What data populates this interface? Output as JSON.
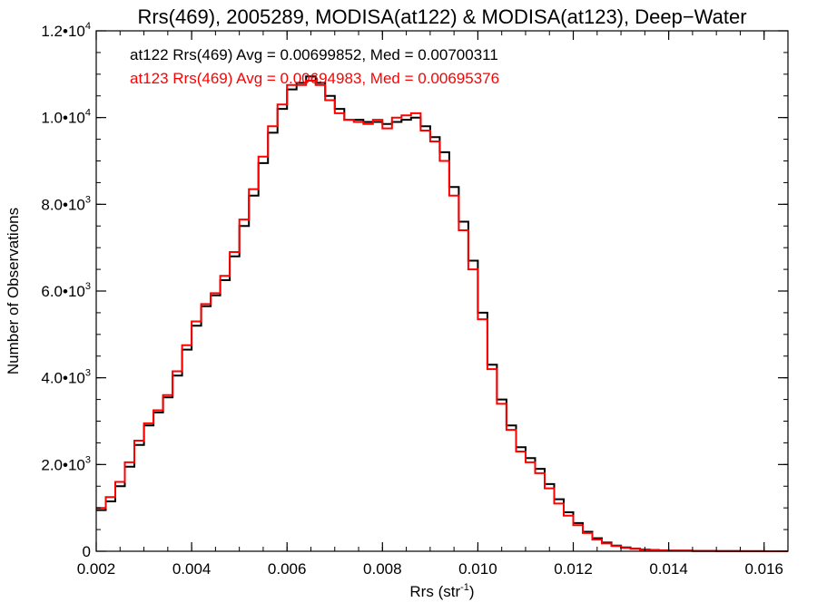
{
  "chart_data": {
    "type": "line",
    "title": "Rrs(469), 2005289, MODISA(at122) & MODISA(at123), Deep−Water",
    "xlabel": {
      "base": "Rrs (str",
      "sup": "-1",
      "close": ")"
    },
    "ylabel": "Number of Observations",
    "xlim": [
      0.002,
      0.0165
    ],
    "ylim": [
      0,
      12000
    ],
    "x_ticks": [
      {
        "value": 0.002,
        "label": "0.002"
      },
      {
        "value": 0.004,
        "label": "0.004"
      },
      {
        "value": 0.006,
        "label": "0.006"
      },
      {
        "value": 0.008,
        "label": "0.008"
      },
      {
        "value": 0.01,
        "label": "0.010"
      },
      {
        "value": 0.012,
        "label": "0.012"
      },
      {
        "value": 0.014,
        "label": "0.014"
      },
      {
        "value": 0.016,
        "label": "0.016"
      }
    ],
    "y_ticks": [
      {
        "value": 0,
        "mant": "0",
        "exp": ""
      },
      {
        "value": 2000,
        "mant": "2.0•10",
        "exp": "3"
      },
      {
        "value": 4000,
        "mant": "4.0•10",
        "exp": "3"
      },
      {
        "value": 6000,
        "mant": "6.0•10",
        "exp": "3"
      },
      {
        "value": 8000,
        "mant": "8.0•10",
        "exp": "3"
      },
      {
        "value": 10000,
        "mant": "1.0•10",
        "exp": "4"
      },
      {
        "value": 12000,
        "mant": "1.2•10",
        "exp": "4"
      }
    ],
    "legend": {
      "placement": "top-left",
      "entries": [
        {
          "text": "at122 Rrs(469) Avg = 0.00699852, Med = 0.00700311",
          "color": "#000000"
        },
        {
          "text": "at123 Rrs(469) Avg = 0.00694983, Med = 0.00695376",
          "color": "#ff0000"
        }
      ]
    },
    "series": [
      {
        "color": "#000000",
        "points": [
          [
            0.002,
            950
          ],
          [
            0.0022,
            1150
          ],
          [
            0.0024,
            1500
          ],
          [
            0.0026,
            1950
          ],
          [
            0.0028,
            2450
          ],
          [
            0.003,
            2900
          ],
          [
            0.0032,
            3200
          ],
          [
            0.0034,
            3550
          ],
          [
            0.0036,
            4050
          ],
          [
            0.0038,
            4650
          ],
          [
            0.004,
            5200
          ],
          [
            0.0042,
            5650
          ],
          [
            0.0044,
            5900
          ],
          [
            0.0046,
            6250
          ],
          [
            0.0048,
            6800
          ],
          [
            0.005,
            7500
          ],
          [
            0.0052,
            8200
          ],
          [
            0.0054,
            8950
          ],
          [
            0.0056,
            9650
          ],
          [
            0.0058,
            10200
          ],
          [
            0.006,
            10650
          ],
          [
            0.0062,
            10800
          ],
          [
            0.0064,
            10950
          ],
          [
            0.0066,
            10800
          ],
          [
            0.0068,
            10500
          ],
          [
            0.007,
            10200
          ],
          [
            0.0072,
            9950
          ],
          [
            0.0074,
            9950
          ],
          [
            0.0076,
            9900
          ],
          [
            0.0078,
            9900
          ],
          [
            0.008,
            9850
          ],
          [
            0.0082,
            9900
          ],
          [
            0.0084,
            9950
          ],
          [
            0.0086,
            10000
          ],
          [
            0.0088,
            9800
          ],
          [
            0.009,
            9550
          ],
          [
            0.0092,
            9200
          ],
          [
            0.0094,
            8400
          ],
          [
            0.0096,
            7600
          ],
          [
            0.0098,
            6700
          ],
          [
            0.01,
            5500
          ],
          [
            0.0102,
            4300
          ],
          [
            0.0104,
            3500
          ],
          [
            0.0106,
            2900
          ],
          [
            0.0108,
            2400
          ],
          [
            0.011,
            2150
          ],
          [
            0.0112,
            1900
          ],
          [
            0.0114,
            1550
          ],
          [
            0.0116,
            1200
          ],
          [
            0.0118,
            900
          ],
          [
            0.012,
            650
          ],
          [
            0.0122,
            450
          ],
          [
            0.0124,
            300
          ],
          [
            0.0126,
            200
          ],
          [
            0.0128,
            130
          ],
          [
            0.013,
            90
          ],
          [
            0.0132,
            60
          ],
          [
            0.0134,
            40
          ],
          [
            0.0136,
            30
          ],
          [
            0.0138,
            20
          ],
          [
            0.014,
            14
          ],
          [
            0.0145,
            8
          ],
          [
            0.015,
            4
          ],
          [
            0.0155,
            2
          ],
          [
            0.016,
            1
          ],
          [
            0.0165,
            0
          ]
        ]
      },
      {
        "color": "#ff0000",
        "points": [
          [
            0.002,
            1000
          ],
          [
            0.0022,
            1250
          ],
          [
            0.0024,
            1600
          ],
          [
            0.0026,
            2050
          ],
          [
            0.0028,
            2550
          ],
          [
            0.003,
            2950
          ],
          [
            0.0032,
            3250
          ],
          [
            0.0034,
            3600
          ],
          [
            0.0036,
            4150
          ],
          [
            0.0038,
            4750
          ],
          [
            0.004,
            5300
          ],
          [
            0.0042,
            5700
          ],
          [
            0.0044,
            5950
          ],
          [
            0.0046,
            6350
          ],
          [
            0.0048,
            6900
          ],
          [
            0.005,
            7650
          ],
          [
            0.0052,
            8350
          ],
          [
            0.0054,
            9100
          ],
          [
            0.0056,
            9800
          ],
          [
            0.0058,
            10300
          ],
          [
            0.006,
            10750
          ],
          [
            0.0062,
            10750
          ],
          [
            0.0064,
            10850
          ],
          [
            0.0066,
            10750
          ],
          [
            0.0068,
            10400
          ],
          [
            0.007,
            10100
          ],
          [
            0.0072,
            9950
          ],
          [
            0.0074,
            9900
          ],
          [
            0.0076,
            9850
          ],
          [
            0.0078,
            9950
          ],
          [
            0.008,
            9750
          ],
          [
            0.0082,
            10000
          ],
          [
            0.0084,
            10050
          ],
          [
            0.0086,
            10100
          ],
          [
            0.0088,
            9700
          ],
          [
            0.009,
            9450
          ],
          [
            0.0092,
            9000
          ],
          [
            0.0094,
            8200
          ],
          [
            0.0096,
            7400
          ],
          [
            0.0098,
            6500
          ],
          [
            0.01,
            5350
          ],
          [
            0.0102,
            4200
          ],
          [
            0.0104,
            3400
          ],
          [
            0.0106,
            2800
          ],
          [
            0.0108,
            2300
          ],
          [
            0.011,
            2050
          ],
          [
            0.0112,
            1800
          ],
          [
            0.0114,
            1450
          ],
          [
            0.0116,
            1100
          ],
          [
            0.0118,
            820
          ],
          [
            0.012,
            600
          ],
          [
            0.0122,
            420
          ],
          [
            0.0124,
            270
          ],
          [
            0.0126,
            180
          ],
          [
            0.0128,
            120
          ],
          [
            0.013,
            80
          ],
          [
            0.0132,
            55
          ],
          [
            0.0134,
            35
          ],
          [
            0.0136,
            25
          ],
          [
            0.0138,
            18
          ],
          [
            0.014,
            12
          ],
          [
            0.0145,
            7
          ],
          [
            0.015,
            3
          ],
          [
            0.0155,
            2
          ],
          [
            0.016,
            1
          ],
          [
            0.0165,
            0
          ]
        ]
      }
    ]
  }
}
